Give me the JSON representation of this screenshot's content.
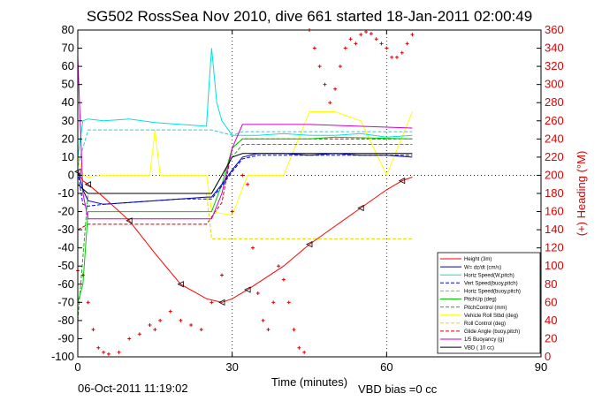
{
  "chart_data": {
    "type": "line",
    "title": "SG502 RossSea Nov 2010, dive 661 started 18-Jan-2011 02:00:49",
    "xlabel": "Time (minutes)",
    "ylabel_right": "(+) Heading (°M)",
    "footer_date": "06-Oct-2011 11:19:02",
    "footer_note": "VBD bias =0 cc",
    "xlim": [
      0,
      90
    ],
    "ylim": [
      -100,
      80
    ],
    "y2lim": [
      0,
      360
    ],
    "xticks": [
      0,
      30,
      60,
      90
    ],
    "yticks": [
      80,
      70,
      60,
      50,
      40,
      30,
      20,
      10,
      0,
      -10,
      -20,
      -30,
      -40,
      -50,
      -60,
      -70,
      -80,
      -90,
      -100
    ],
    "y2ticks": [
      360,
      340,
      320,
      300,
      280,
      260,
      240,
      220,
      200,
      180,
      160,
      140,
      120,
      100,
      80,
      60,
      40,
      20,
      0
    ],
    "grid": "dotted at x ticks and y=0",
    "legend_position": "bottom-right",
    "colors": {
      "height": "#ff0000",
      "w": "#0000aa",
      "horiz_speed": "#00e0e0",
      "vert_speed": "#0000ff",
      "horiz_speed_buoy": "#33cccc",
      "pitch_up": "#00cc00",
      "pitch_control": "#22aa22",
      "vehicle_roll": "#ffff00",
      "roll_control": "#dddd00",
      "glide_angle": "#cc0000",
      "buoyancy": "#cc00cc",
      "vbd": "#000000",
      "heading": "#dd0000"
    },
    "series": [
      {
        "name": "Height (3m)",
        "key": "height",
        "x": [
          0,
          1,
          2,
          5,
          10,
          15,
          20,
          25,
          28,
          30,
          33,
          40,
          45,
          50,
          55,
          60,
          63,
          65
        ],
        "y": [
          2,
          -3,
          -5,
          -12,
          -25,
          -43,
          -60,
          -68,
          -70,
          -68,
          -63,
          -50,
          -38,
          -28,
          -18,
          -8,
          -3,
          -1
        ]
      },
      {
        "name": "W= dz/dt (cm/s)",
        "key": "w",
        "x": [
          0,
          1,
          2,
          5,
          10,
          15,
          20,
          25,
          26,
          28,
          30,
          32,
          35,
          40,
          45,
          50,
          55,
          60,
          65
        ],
        "y": [
          3,
          -8,
          -14,
          -16,
          -15,
          -14,
          -13,
          -12,
          -12,
          -5,
          3,
          10,
          12,
          12,
          11,
          12,
          11,
          11,
          10
        ]
      },
      {
        "name": "Horiz Speed(W,pitch)",
        "key": "horiz_speed",
        "x": [
          0,
          1,
          2,
          5,
          10,
          15,
          20,
          25,
          25.5,
          26,
          27,
          28,
          30,
          32,
          35,
          40,
          45,
          50,
          55,
          60,
          65
        ],
        "y": [
          10,
          30,
          31,
          30,
          31,
          29,
          28,
          27,
          50,
          70,
          40,
          30,
          22,
          22,
          22,
          23,
          22,
          22,
          23,
          21,
          22
        ]
      },
      {
        "name": "Vert Speed(buoy,pitch)",
        "key": "vert_speed",
        "x": [
          0,
          1,
          2,
          5,
          10,
          15,
          20,
          25,
          26,
          28,
          30,
          32,
          35,
          40,
          45,
          50,
          55,
          60,
          65
        ],
        "y": [
          2,
          -16,
          -17,
          -16,
          -15,
          -14,
          -13,
          -13,
          -13,
          -6,
          2,
          9,
          11,
          11,
          11,
          11,
          11,
          11,
          11
        ]
      },
      {
        "name": "Horiz Speed(buoy,pitch)",
        "key": "horiz_speed_buoy",
        "x": [
          0,
          2,
          10,
          20,
          25,
          26,
          30,
          32,
          45,
          65
        ],
        "y": [
          5,
          25,
          25,
          25,
          25,
          25,
          22,
          24,
          24,
          24
        ]
      },
      {
        "name": "PitchUp (deg)",
        "key": "pitch_up",
        "x": [
          0,
          1,
          2,
          5,
          15,
          25,
          26,
          28,
          30,
          32,
          45,
          50,
          65
        ],
        "y": [
          -70,
          -60,
          -20,
          -20,
          -20,
          -20,
          -20,
          -5,
          15,
          20,
          20,
          21,
          20
        ]
      },
      {
        "name": "PitchControl (mm)",
        "key": "pitch_control",
        "x": [
          0,
          2,
          25,
          26,
          30,
          32,
          65
        ],
        "y": [
          -80,
          -10,
          -10,
          -10,
          10,
          17,
          17
        ]
      },
      {
        "name": "Vehicle Roll Stbd (deg)",
        "key": "vehicle_roll",
        "x": [
          0,
          1,
          2,
          5,
          10,
          14,
          15,
          16,
          17,
          20,
          25,
          26,
          30,
          33,
          40,
          45,
          50,
          55,
          60,
          65
        ],
        "y": [
          10,
          0,
          -1,
          0,
          0,
          0,
          25,
          0,
          0,
          0,
          0,
          -20,
          -22,
          0,
          0,
          35,
          35,
          30,
          0,
          35
        ]
      },
      {
        "name": "Roll Control (deg)",
        "key": "roll_control",
        "x": [
          0,
          2,
          25,
          26,
          30,
          65
        ],
        "y": [
          -10,
          -10,
          -10,
          -35,
          -35,
          -35
        ]
      },
      {
        "name": "Glide Angle (buoy,pitch)",
        "key": "glide_angle",
        "x": [
          0,
          2,
          25,
          28,
          30,
          32,
          65
        ],
        "y": [
          -30,
          -27,
          -27,
          -15,
          15,
          20,
          20
        ]
      },
      {
        "name": "1/5 Buoyancy (g)",
        "key": "buoyancy",
        "x": [
          0,
          1,
          2,
          25,
          26,
          28,
          30,
          32,
          45,
          65
        ],
        "y": [
          65,
          -10,
          -24,
          -24,
          -24,
          -10,
          15,
          28,
          28,
          26
        ]
      },
      {
        "name": "VBD ( 10 cc)",
        "key": "vbd",
        "x": [
          0,
          2,
          25,
          26,
          30,
          32,
          65
        ],
        "y": [
          -5,
          -10,
          -10,
          -10,
          10,
          12,
          12
        ]
      },
      {
        "name": "Heading",
        "key": "heading",
        "axis": "right",
        "x": [
          0,
          1,
          2,
          3,
          4,
          5,
          6,
          8,
          10,
          12,
          14,
          15,
          16,
          18,
          20,
          22,
          24,
          26,
          28,
          30,
          32,
          33,
          34,
          35,
          36,
          37,
          38,
          39,
          40,
          41,
          42,
          43,
          44,
          45,
          46,
          47,
          48,
          49,
          50,
          51,
          52,
          53,
          54,
          55,
          56,
          57,
          58,
          59,
          60,
          61,
          62,
          63,
          64,
          65
        ],
        "y": [
          95,
          90,
          60,
          30,
          10,
          5,
          3,
          5,
          20,
          25,
          35,
          30,
          40,
          50,
          40,
          35,
          30,
          60,
          90,
          160,
          200,
          190,
          120,
          70,
          40,
          30,
          60,
          100,
          85,
          60,
          30,
          10,
          5,
          360,
          340,
          320,
          300,
          280,
          295,
          320,
          340,
          350,
          345,
          355,
          358,
          356,
          350,
          345,
          340,
          330,
          330,
          335,
          345,
          355
        ]
      }
    ]
  },
  "legend": {
    "entries": [
      {
        "label": "Height (3m)",
        "color": "#ff0000",
        "dash": "0"
      },
      {
        "label": "W= dz/dt (cm/s)",
        "color": "#0000aa",
        "dash": "0"
      },
      {
        "label": "Horiz Speed(W,pitch)",
        "color": "#00e0e0",
        "dash": "0"
      },
      {
        "label": "Vert Speed(buoy,pitch)",
        "color": "#0000ff",
        "dash": "4,2"
      },
      {
        "label": "Horiz Speed(buoy,pitch)",
        "color": "#33cccc",
        "dash": "4,2"
      },
      {
        "label": "PitchUp (deg)",
        "color": "#00cc00",
        "dash": "0"
      },
      {
        "label": "PitchControl (mm)",
        "color": "#22aa22",
        "dash": "4,2"
      },
      {
        "label": "Vehicle Roll Stbd (deg)",
        "color": "#ffff00",
        "dash": "0"
      },
      {
        "label": "Roll Control (deg)",
        "color": "#dddd00",
        "dash": "4,2"
      },
      {
        "label": "Glide Angle (buoy,pitch)",
        "color": "#cc0000",
        "dash": "4,2"
      },
      {
        "label": "1/5 Buoyancy (g)",
        "color": "#cc00cc",
        "dash": "0"
      },
      {
        "label": "VBD ( 10 cc)",
        "color": "#000000",
        "dash": "0"
      }
    ]
  }
}
